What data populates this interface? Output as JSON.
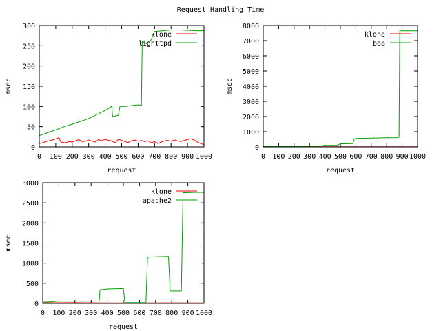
{
  "figure": {
    "title": "Request Handling Time"
  },
  "colors": {
    "klone": "#ff0000",
    "other": "#00a000",
    "axis": "#000000"
  },
  "chart_data": [
    {
      "type": "line",
      "xlabel": "request",
      "ylabel": "msec",
      "xlim": [
        0,
        1000
      ],
      "ylim": [
        0,
        300
      ],
      "xticks": [
        0,
        100,
        200,
        300,
        400,
        500,
        600,
        700,
        800,
        900,
        1000
      ],
      "yticks": [
        0,
        50,
        100,
        150,
        200,
        250,
        300
      ],
      "legend_position": "top-right",
      "series": [
        {
          "name": "klone",
          "color": "#ff0000",
          "x": [
            0,
            20,
            40,
            60,
            80,
            100,
            120,
            130,
            140,
            160,
            180,
            200,
            220,
            240,
            260,
            280,
            300,
            320,
            340,
            360,
            380,
            400,
            420,
            440,
            460,
            480,
            500,
            520,
            540,
            560,
            580,
            600,
            620,
            640,
            660,
            680,
            700,
            720,
            740,
            760,
            780,
            800,
            820,
            840,
            860,
            880,
            900,
            920,
            940,
            960,
            980,
            1000
          ],
          "y": [
            8,
            10,
            13,
            15,
            17,
            20,
            23,
            12,
            11,
            10,
            13,
            12,
            15,
            18,
            13,
            14,
            17,
            14,
            12,
            18,
            15,
            19,
            16,
            15,
            10,
            19,
            16,
            13,
            11,
            15,
            17,
            14,
            16,
            13,
            15,
            10,
            13,
            8,
            12,
            15,
            16,
            14,
            17,
            15,
            13,
            16,
            18,
            20,
            17,
            12,
            8,
            6
          ]
        },
        {
          "name": "lighttpd",
          "color": "#00a000",
          "x": [
            0,
            50,
            100,
            150,
            200,
            250,
            300,
            350,
            400,
            440,
            445,
            480,
            490,
            520,
            560,
            600,
            620,
            625,
            650,
            680,
            700,
            750,
            800,
            850,
            900,
            950,
            1000
          ],
          "y": [
            28,
            35,
            42,
            50,
            56,
            63,
            70,
            80,
            90,
            100,
            75,
            78,
            100,
            100,
            102,
            104,
            103,
            260,
            255,
            265,
            285,
            287,
            289,
            289,
            288,
            287,
            287
          ]
        }
      ]
    },
    {
      "type": "line",
      "xlabel": "request",
      "ylabel": "msec",
      "xlim": [
        0,
        1000
      ],
      "ylim": [
        0,
        8000
      ],
      "xticks": [
        0,
        100,
        200,
        300,
        400,
        500,
        600,
        700,
        800,
        900,
        1000
      ],
      "yticks": [
        0,
        1000,
        2000,
        3000,
        4000,
        5000,
        6000,
        7000,
        8000
      ],
      "legend_position": "top-right",
      "series": [
        {
          "name": "klone",
          "color": "#ff0000",
          "x": [
            0,
            200,
            400,
            600,
            800,
            1000
          ],
          "y": [
            10,
            10,
            12,
            11,
            12,
            10
          ]
        },
        {
          "name": "boa",
          "color": "#00a000",
          "x": [
            0,
            100,
            200,
            300,
            380,
            390,
            480,
            500,
            580,
            590,
            600,
            700,
            800,
            870,
            880,
            885,
            1000
          ],
          "y": [
            30,
            35,
            40,
            50,
            60,
            100,
            110,
            200,
            220,
            500,
            560,
            580,
            600,
            610,
            640,
            7650,
            7650
          ]
        }
      ]
    },
    {
      "type": "line",
      "xlabel": "request",
      "ylabel": "msec",
      "xlim": [
        0,
        1000
      ],
      "ylim": [
        0,
        3000
      ],
      "xticks": [
        0,
        100,
        200,
        300,
        400,
        500,
        600,
        700,
        800,
        900,
        1000
      ],
      "yticks": [
        0,
        500,
        1000,
        1500,
        2000,
        2500,
        3000
      ],
      "legend_position": "top-right",
      "series": [
        {
          "name": "klone",
          "color": "#ff0000",
          "x": [
            0,
            200,
            400,
            600,
            800,
            1000
          ],
          "y": [
            15,
            18,
            12,
            14,
            16,
            13
          ]
        },
        {
          "name": "apache2",
          "color": "#00a000",
          "x": [
            0,
            50,
            100,
            150,
            200,
            250,
            300,
            350,
            355,
            400,
            500,
            510,
            640,
            650,
            700,
            780,
            790,
            860,
            870,
            950,
            1000
          ],
          "y": [
            30,
            40,
            60,
            55,
            60,
            55,
            60,
            60,
            340,
            360,
            370,
            20,
            20,
            1150,
            1160,
            1170,
            310,
            310,
            2750,
            2760,
            2760
          ]
        }
      ]
    }
  ]
}
